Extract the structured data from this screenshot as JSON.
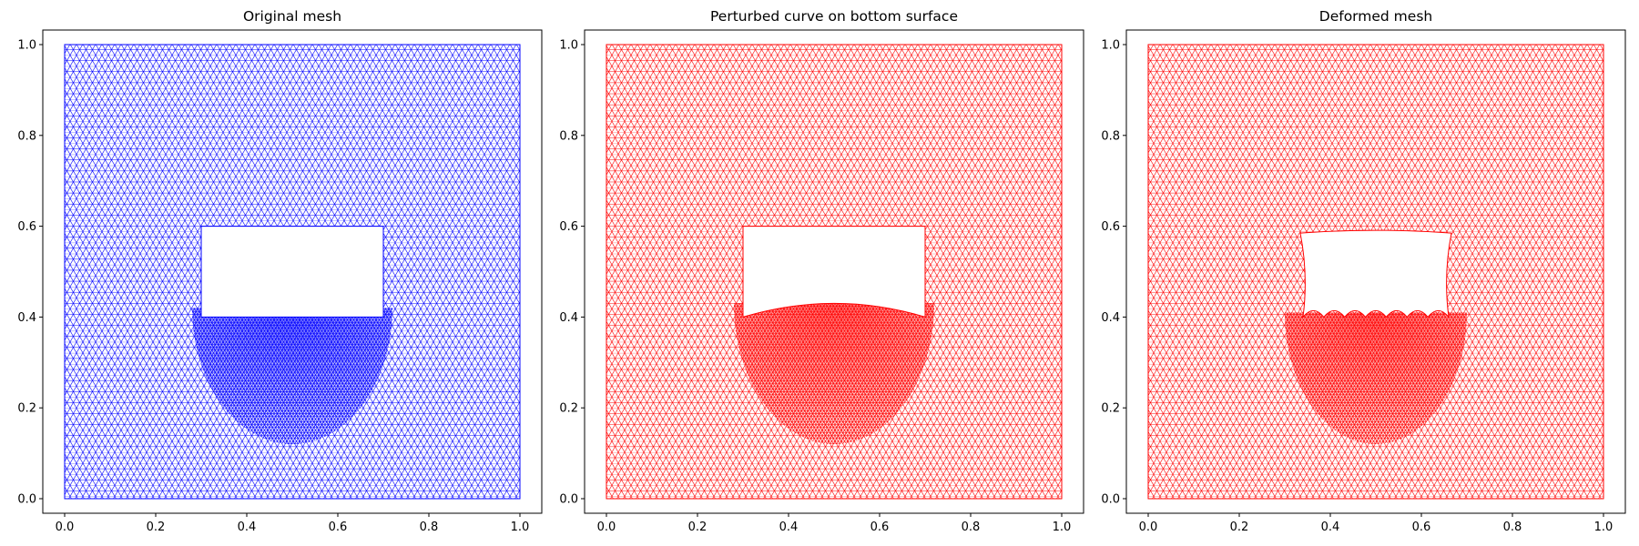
{
  "chart_data": [
    {
      "type": "mesh",
      "title": "Original mesh",
      "xlim": [
        0.0,
        1.0
      ],
      "ylim": [
        0.0,
        1.0
      ],
      "xticks": [
        "0.0",
        "0.2",
        "0.4",
        "0.6",
        "0.8",
        "1.0"
      ],
      "yticks": [
        "0.0",
        "0.2",
        "0.4",
        "0.6",
        "0.8",
        "1.0"
      ],
      "mesh_color": "#0000ff",
      "domain": [
        0.0,
        1.0,
        0.0,
        1.0
      ],
      "hole": {
        "x": [
          0.3,
          0.7
        ],
        "y_bottom": 0.4,
        "y_top": 0.6
      },
      "deformation": "none",
      "refined_region": {
        "x": [
          0.28,
          0.72
        ],
        "y": [
          0.12,
          0.42
        ]
      }
    },
    {
      "type": "mesh",
      "title": "Perturbed curve on bottom surface",
      "xlim": [
        0.0,
        1.0
      ],
      "ylim": [
        0.0,
        1.0
      ],
      "xticks": [
        "0.0",
        "0.2",
        "0.4",
        "0.6",
        "0.8",
        "1.0"
      ],
      "yticks": [
        "0.0",
        "0.2",
        "0.4",
        "0.6",
        "0.8",
        "1.0"
      ],
      "mesh_color": "#ff0000",
      "domain": [
        0.0,
        1.0,
        0.0,
        1.0
      ],
      "hole": {
        "x": [
          0.3,
          0.7
        ],
        "y_bottom": 0.4,
        "y_top": 0.6,
        "bottom_bump_peak": 0.43
      },
      "deformation": "arch",
      "refined_region": {
        "x": [
          0.28,
          0.72
        ],
        "y": [
          0.12,
          0.43
        ]
      }
    },
    {
      "type": "mesh",
      "title": "Deformed mesh",
      "xlim": [
        0.0,
        1.0
      ],
      "ylim": [
        0.0,
        1.0
      ],
      "xticks": [
        "0.0",
        "0.2",
        "0.4",
        "0.6",
        "0.8",
        "1.0"
      ],
      "yticks": [
        "0.0",
        "0.2",
        "0.4",
        "0.6",
        "0.8",
        "1.0"
      ],
      "mesh_color": "#ff0000",
      "domain": [
        0.0,
        1.0,
        0.0,
        1.0
      ],
      "hole": {
        "x": [
          0.34,
          0.66
        ],
        "y_bottom": 0.4,
        "y_top": 0.585
      },
      "deformation": "wavy",
      "refined_region": {
        "x": [
          0.3,
          0.7
        ],
        "y": [
          0.12,
          0.41
        ]
      }
    }
  ]
}
